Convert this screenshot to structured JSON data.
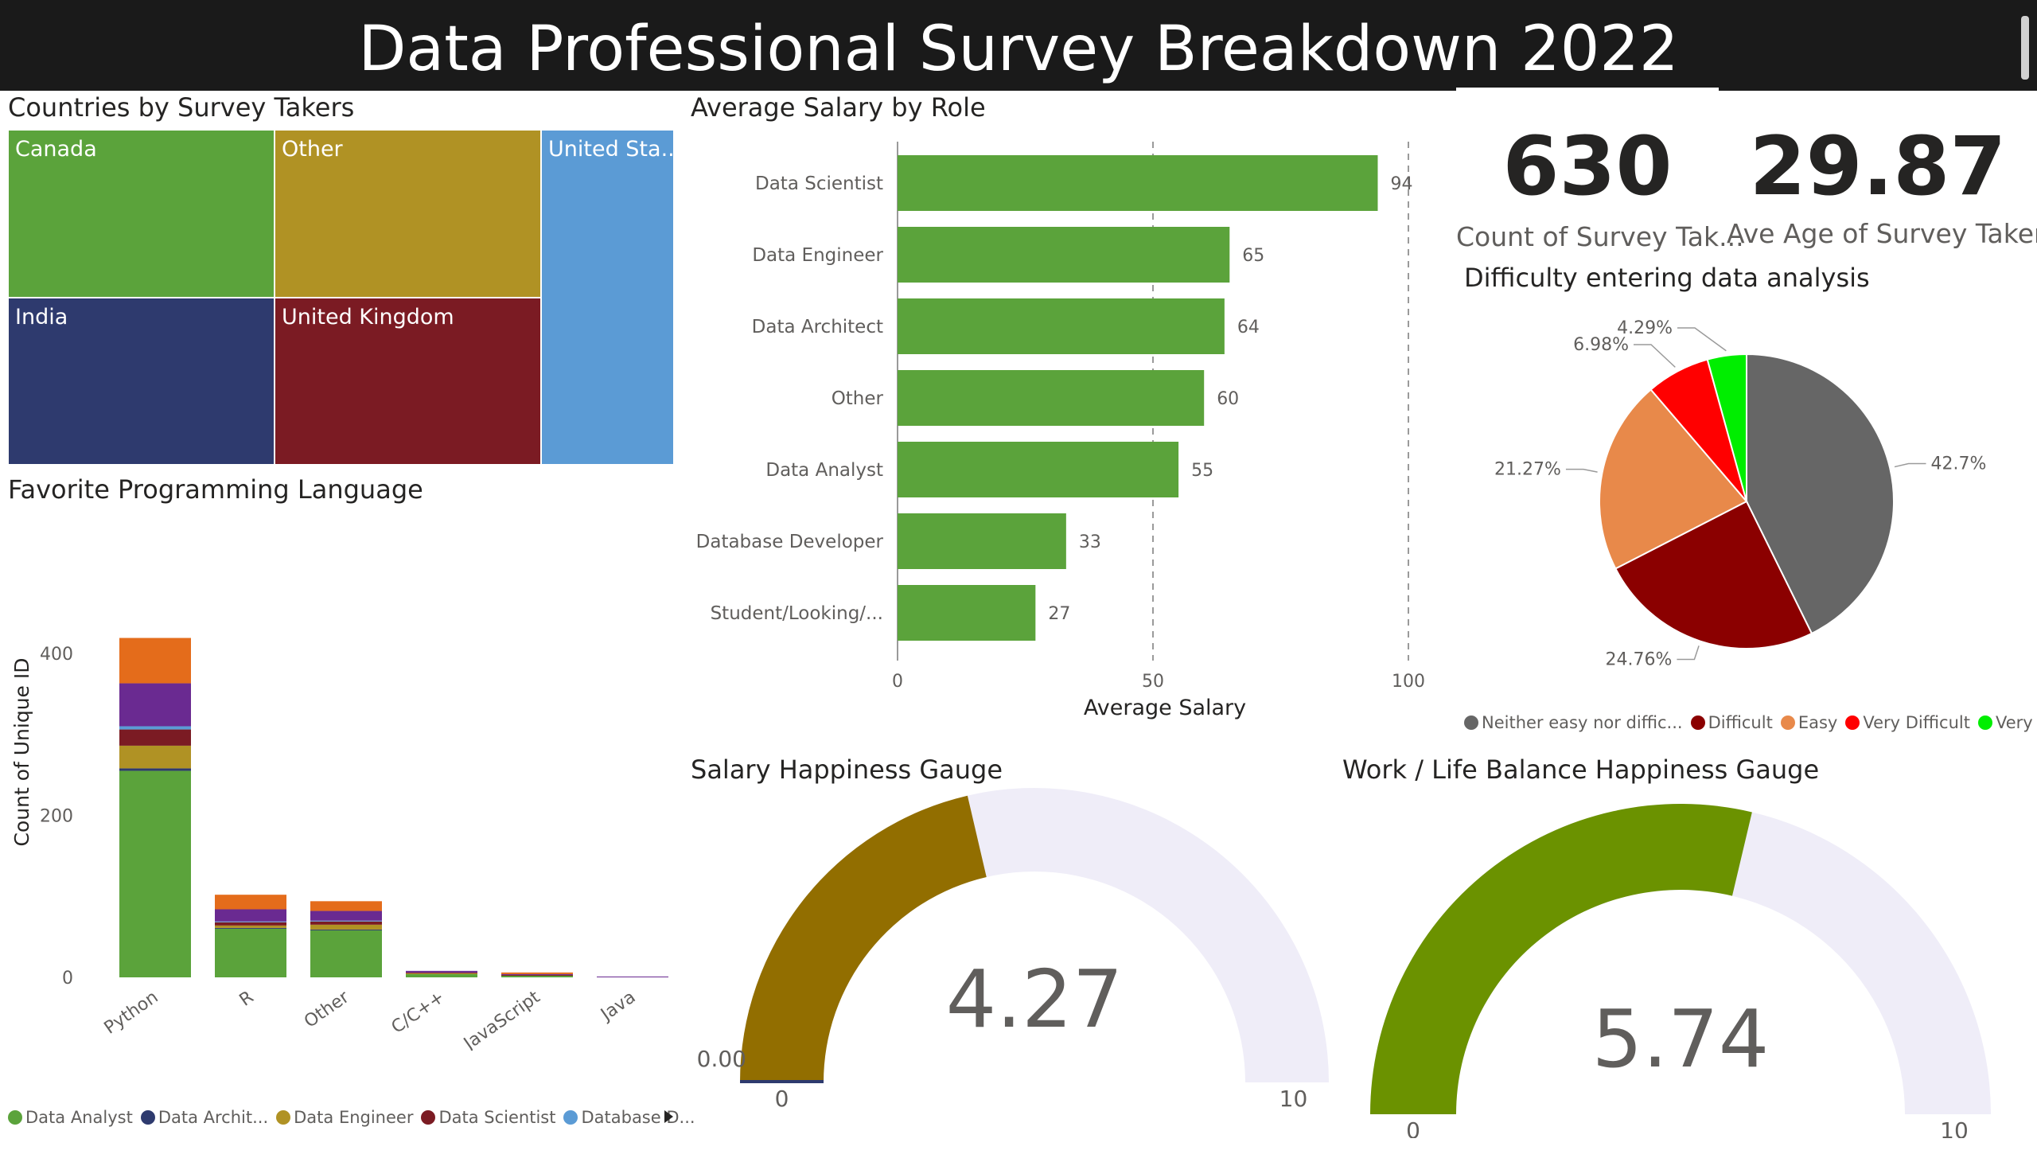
{
  "header": {
    "title": "Data Professional Survey Breakdown 2022"
  },
  "countries": {
    "title": "Countries by Survey Takers",
    "tiles": [
      {
        "label": "Canada",
        "color": "#5ba33b"
      },
      {
        "label": "Other",
        "color": "#b09224"
      },
      {
        "label": "United Sta...",
        "color": "#5b9bd5"
      },
      {
        "label": "India",
        "color": "#2e3a6e"
      },
      {
        "label": "United Kingdom",
        "color": "#7b1b23"
      }
    ]
  },
  "salary_by_role": {
    "title": "Average Salary by Role",
    "chart_data": {
      "type": "bar",
      "orientation": "horizontal",
      "categories": [
        "Data Scientist",
        "Data Engineer",
        "Data Architect",
        "Other",
        "Data Analyst",
        "Database Developer",
        "Student/Looking/..."
      ],
      "values": [
        94,
        65,
        64,
        60,
        55,
        33,
        27
      ],
      "xlabel": "Average Salary",
      "xlim": [
        0,
        100
      ],
      "xticks": [
        "0",
        "50",
        "100"
      ],
      "color": "#5ba33b"
    }
  },
  "kpis": {
    "count": {
      "value": "630",
      "label": "Count of Survey Tak..."
    },
    "age": {
      "value": "29.87",
      "label": "Ave Age of Survey Takers"
    }
  },
  "difficulty": {
    "title": "Difficulty entering data analysis",
    "chart_data": {
      "type": "pie",
      "slices": [
        {
          "name": "Neither easy nor diffic...",
          "value": 42.7,
          "label": "42.7%",
          "color": "#666666"
        },
        {
          "name": "Difficult",
          "value": 24.76,
          "label": "24.76%",
          "color": "#8b0000"
        },
        {
          "name": "Easy",
          "value": 21.27,
          "label": "21.27%",
          "color": "#e8894a"
        },
        {
          "name": "Very Difficult",
          "value": 6.98,
          "label": "6.98%",
          "color": "#ff0000"
        },
        {
          "name": "Very Easy",
          "value": 4.29,
          "label": "4.29%",
          "color": "#00ee00"
        }
      ]
    }
  },
  "languages": {
    "title": "Favorite Programming Language",
    "chart_data": {
      "type": "bar",
      "stacked": true,
      "categories": [
        "Python",
        "R",
        "Other",
        "C/C++",
        "JavaScript",
        "Java"
      ],
      "ylabel": "Count of Unique ID",
      "ylim": [
        0,
        450
      ],
      "yticks": [
        "0",
        "200",
        "400"
      ],
      "series": [
        {
          "name": "Data Analyst",
          "color": "#5ba33b",
          "values": [
            255,
            60,
            58,
            4,
            2,
            0
          ]
        },
        {
          "name": "Data Archit...",
          "color": "#2e3a6e",
          "values": [
            3,
            1,
            1,
            0,
            0,
            0
          ]
        },
        {
          "name": "Data Engineer",
          "color": "#b09224",
          "values": [
            28,
            3,
            6,
            1,
            0,
            0
          ]
        },
        {
          "name": "Data Scientist",
          "color": "#7b1b23",
          "values": [
            20,
            4,
            4,
            1,
            1,
            0
          ]
        },
        {
          "name": "Database D...",
          "color": "#5b9bd5",
          "values": [
            4,
            1,
            1,
            0,
            0,
            0
          ]
        },
        {
          "name": "",
          "color": "#6a2a91",
          "values": [
            53,
            15,
            12,
            2,
            1,
            1
          ]
        },
        {
          "name": "",
          "color": "#e46c1b",
          "values": [
            56,
            18,
            12,
            0,
            2,
            0
          ]
        }
      ]
    },
    "legend": [
      "Data Analyst",
      "Data Archit...",
      "Data Engineer",
      "Data Scientist",
      "Database D..."
    ]
  },
  "salary_gauge": {
    "title": "Salary Happiness Gauge",
    "value": 4.27,
    "value_label": "4.27",
    "min": 0,
    "max": 10,
    "min_label": "0",
    "max_label": "10",
    "target_label": "0.00",
    "fill_color": "#926e00",
    "track_color": "#efedf8"
  },
  "wlb_gauge": {
    "title": "Work / Life Balance Happiness Gauge",
    "value": 5.74,
    "value_label": "5.74",
    "min": 0,
    "max": 10,
    "min_label": "0",
    "max_label": "10",
    "fill_color": "#6b9200",
    "track_color": "#efedf8"
  }
}
